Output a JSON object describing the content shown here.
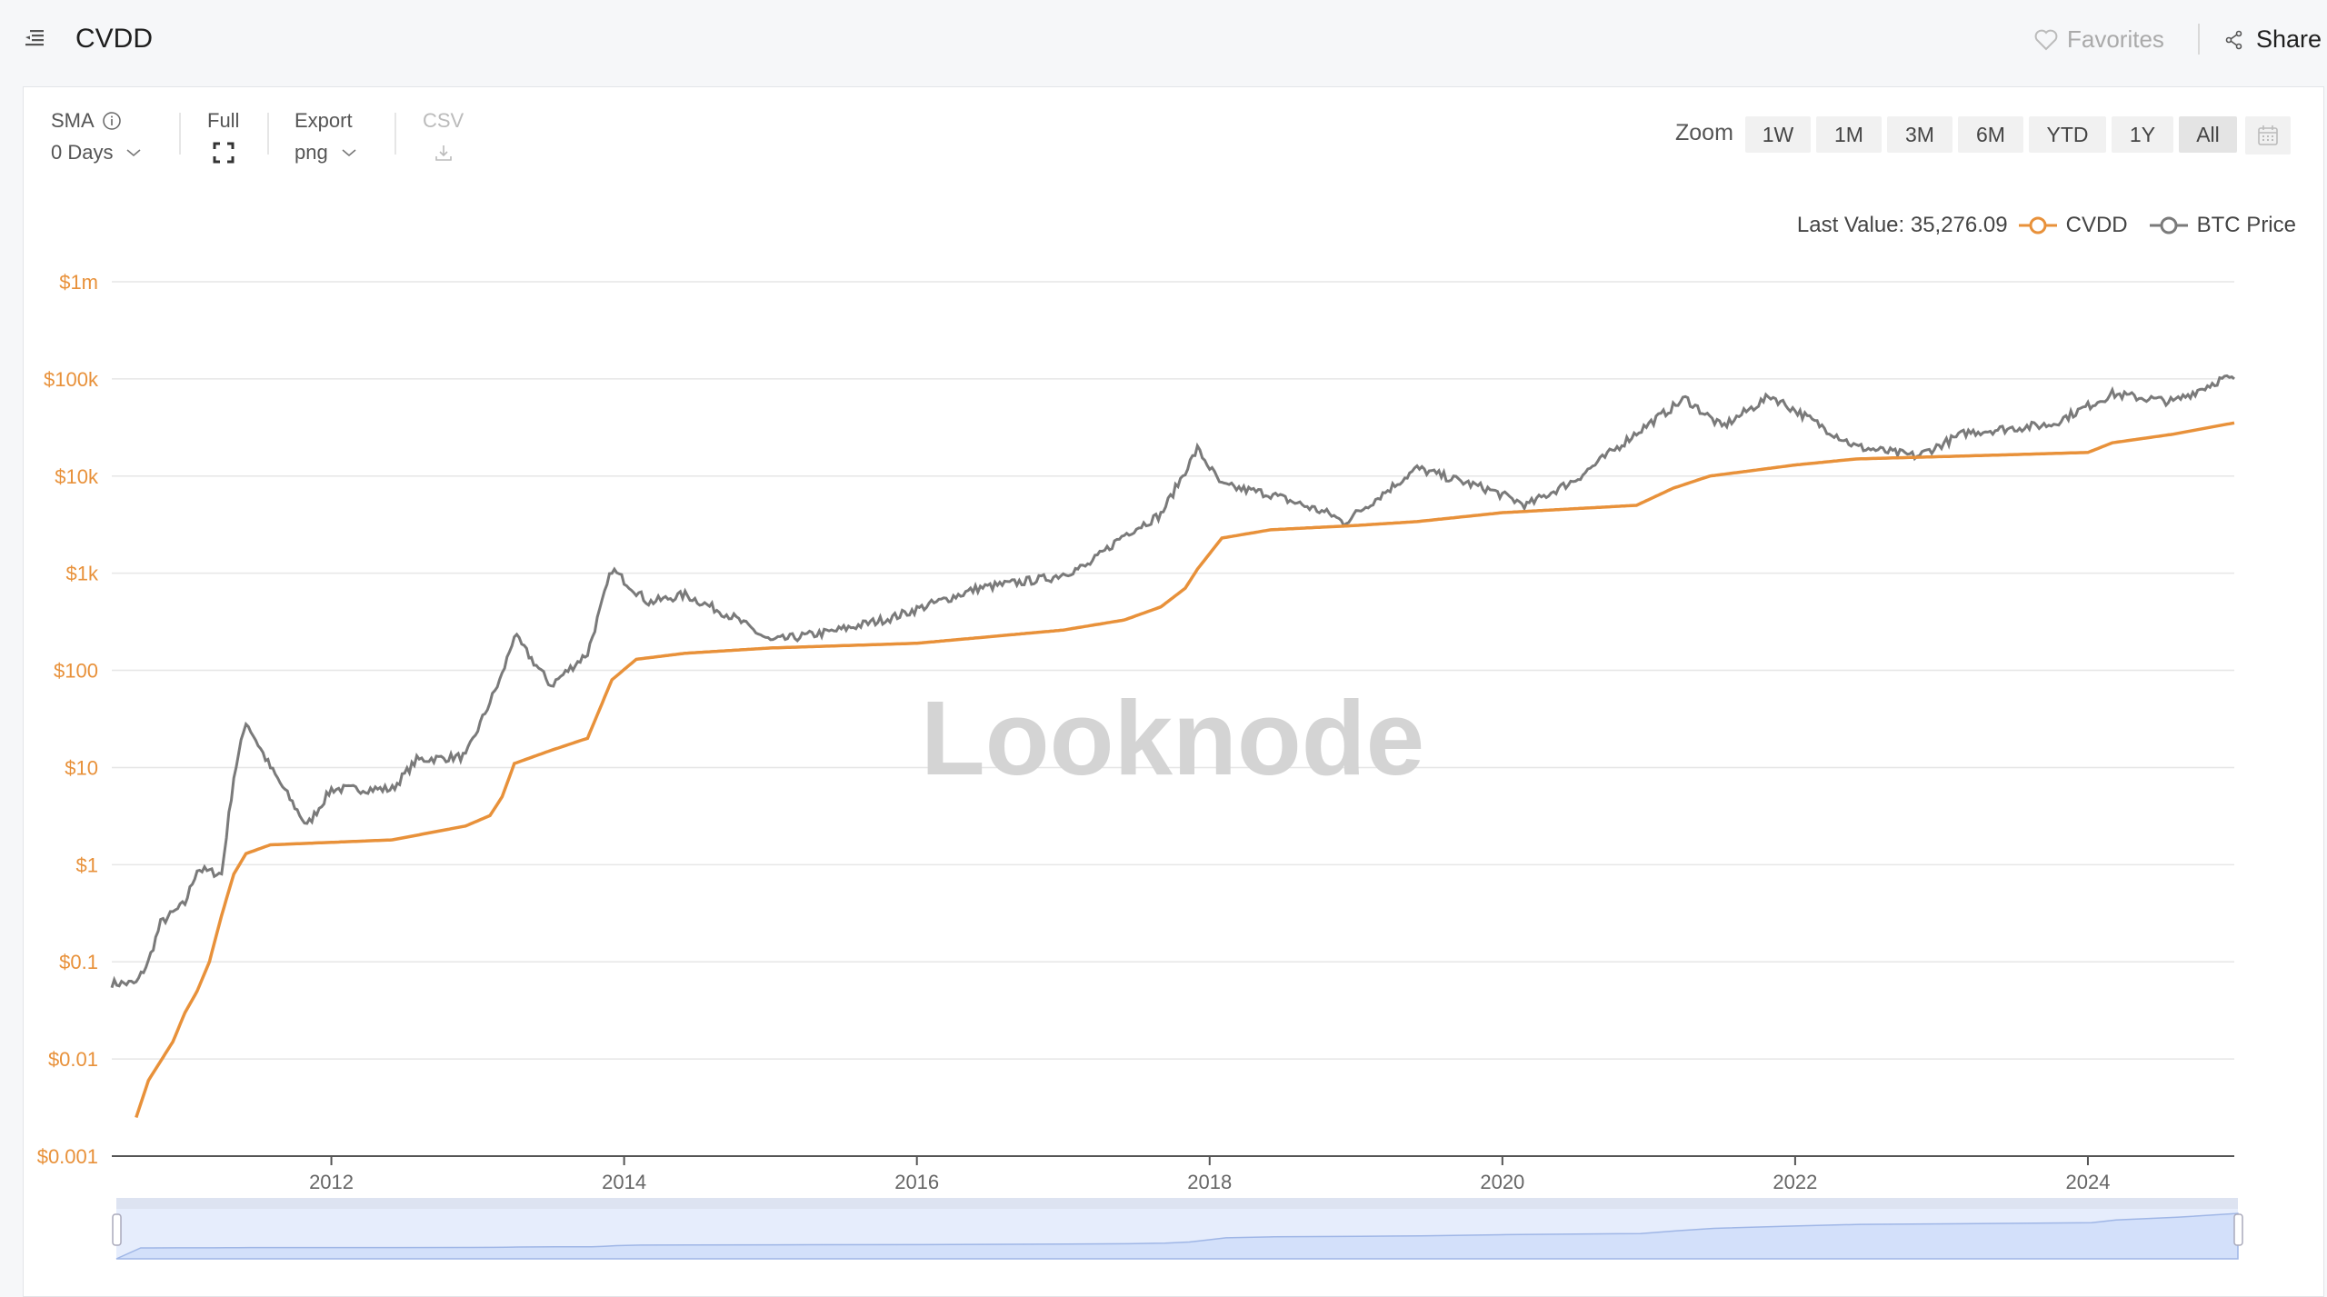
{
  "header": {
    "title": "CVDD",
    "favorites_label": "Favorites",
    "share_label": "Share"
  },
  "toolbar": {
    "sma_label": "SMA",
    "sma_value": "0 Days",
    "full_label": "Full",
    "export_label": "Export",
    "export_value": "png",
    "csv_label": "CSV",
    "zoom_label": "Zoom",
    "zoom_options": [
      "1W",
      "1M",
      "3M",
      "6M",
      "YTD",
      "1Y",
      "All"
    ],
    "zoom_selected": "All"
  },
  "legend": {
    "last_value": "Last Value: 35,276.09"
  },
  "watermark": "Looknode",
  "colors": {
    "cvdd": "#e8913a",
    "btc": "#7a7a7a",
    "axis_label": "#e8913a",
    "navigator": "#d3e0fa"
  },
  "chart_data": {
    "type": "line",
    "y_scale": "log",
    "ylim": [
      0.001,
      1000000
    ],
    "y_ticks": [
      "$0.001",
      "$0.01",
      "$0.1",
      "$1",
      "$10",
      "$100",
      "$1k",
      "$10k",
      "$100k",
      "$1m"
    ],
    "x_ticks": [
      "2012",
      "2014",
      "2016",
      "2018",
      "2020",
      "2022",
      "2024"
    ],
    "xlim": [
      "2010-07",
      "2025-01"
    ],
    "grid": true,
    "legend_position": "top-right",
    "series": [
      {
        "name": "CVDD",
        "points": [
          [
            "2010-09",
            0.0025
          ],
          [
            "2010-10",
            0.006
          ],
          [
            "2010-12",
            0.015
          ],
          [
            "2011-01",
            0.03
          ],
          [
            "2011-02",
            0.05
          ],
          [
            "2011-03",
            0.1
          ],
          [
            "2011-04",
            0.3
          ],
          [
            "2011-05",
            0.8
          ],
          [
            "2011-06",
            1.3
          ],
          [
            "2011-08",
            1.6
          ],
          [
            "2012-06",
            1.8
          ],
          [
            "2012-12",
            2.5
          ],
          [
            "2013-02",
            3.2
          ],
          [
            "2013-03",
            5
          ],
          [
            "2013-04",
            11
          ],
          [
            "2013-07",
            15
          ],
          [
            "2013-10",
            20
          ],
          [
            "2013-11",
            40
          ],
          [
            "2013-12",
            80
          ],
          [
            "2014-02",
            130
          ],
          [
            "2014-06",
            150
          ],
          [
            "2015-01",
            170
          ],
          [
            "2016-01",
            190
          ],
          [
            "2017-01",
            260
          ],
          [
            "2017-06",
            330
          ],
          [
            "2017-09",
            450
          ],
          [
            "2017-11",
            700
          ],
          [
            "2017-12",
            1100
          ],
          [
            "2018-02",
            2300
          ],
          [
            "2018-06",
            2800
          ],
          [
            "2019-01",
            3100
          ],
          [
            "2019-06",
            3400
          ],
          [
            "2020-01",
            4200
          ],
          [
            "2020-12",
            5000
          ],
          [
            "2021-03",
            7500
          ],
          [
            "2021-06",
            10000
          ],
          [
            "2022-01",
            13000
          ],
          [
            "2022-06",
            15000
          ],
          [
            "2023-06",
            16500
          ],
          [
            "2024-01",
            17500
          ],
          [
            "2024-03",
            22000
          ],
          [
            "2024-08",
            27000
          ],
          [
            "2025-01",
            35276.09
          ]
        ]
      },
      {
        "name": "BTC Price",
        "points": [
          [
            "2010-07",
            0.06
          ],
          [
            "2010-09",
            0.06
          ],
          [
            "2010-10",
            0.1
          ],
          [
            "2010-11",
            0.25
          ],
          [
            "2011-01",
            0.4
          ],
          [
            "2011-02",
            0.9
          ],
          [
            "2011-04",
            0.8
          ],
          [
            "2011-05",
            8
          ],
          [
            "2011-06",
            30
          ],
          [
            "2011-08",
            10
          ],
          [
            "2011-11",
            2.5
          ],
          [
            "2012-01",
            6
          ],
          [
            "2012-06",
            6
          ],
          [
            "2012-08",
            12
          ],
          [
            "2012-12",
            13
          ],
          [
            "2013-03",
            90
          ],
          [
            "2013-04",
            230
          ],
          [
            "2013-07",
            70
          ],
          [
            "2013-10",
            150
          ],
          [
            "2013-12",
            1100
          ],
          [
            "2014-03",
            500
          ],
          [
            "2014-06",
            600
          ],
          [
            "2014-10",
            350
          ],
          [
            "2015-01",
            200
          ],
          [
            "2015-06",
            250
          ],
          [
            "2015-11",
            350
          ],
          [
            "2016-06",
            700
          ],
          [
            "2016-12",
            900
          ],
          [
            "2017-03",
            1200
          ],
          [
            "2017-06",
            2500
          ],
          [
            "2017-09",
            4000
          ],
          [
            "2017-12",
            19000
          ],
          [
            "2018-02",
            8000
          ],
          [
            "2018-06",
            6500
          ],
          [
            "2018-11",
            4000
          ],
          [
            "2018-12",
            3300
          ],
          [
            "2019-06",
            12000
          ],
          [
            "2019-12",
            7200
          ],
          [
            "2020-03",
            5000
          ],
          [
            "2020-07",
            9200
          ],
          [
            "2020-12",
            28000
          ],
          [
            "2021-04",
            63000
          ],
          [
            "2021-07",
            32000
          ],
          [
            "2021-11",
            67000
          ],
          [
            "2022-06",
            20000
          ],
          [
            "2022-11",
            16000
          ],
          [
            "2023-03",
            28000
          ],
          [
            "2023-10",
            34000
          ],
          [
            "2024-03",
            70000
          ],
          [
            "2024-08",
            58000
          ],
          [
            "2024-12",
            100000
          ],
          [
            "2025-01",
            100000
          ]
        ]
      }
    ]
  }
}
